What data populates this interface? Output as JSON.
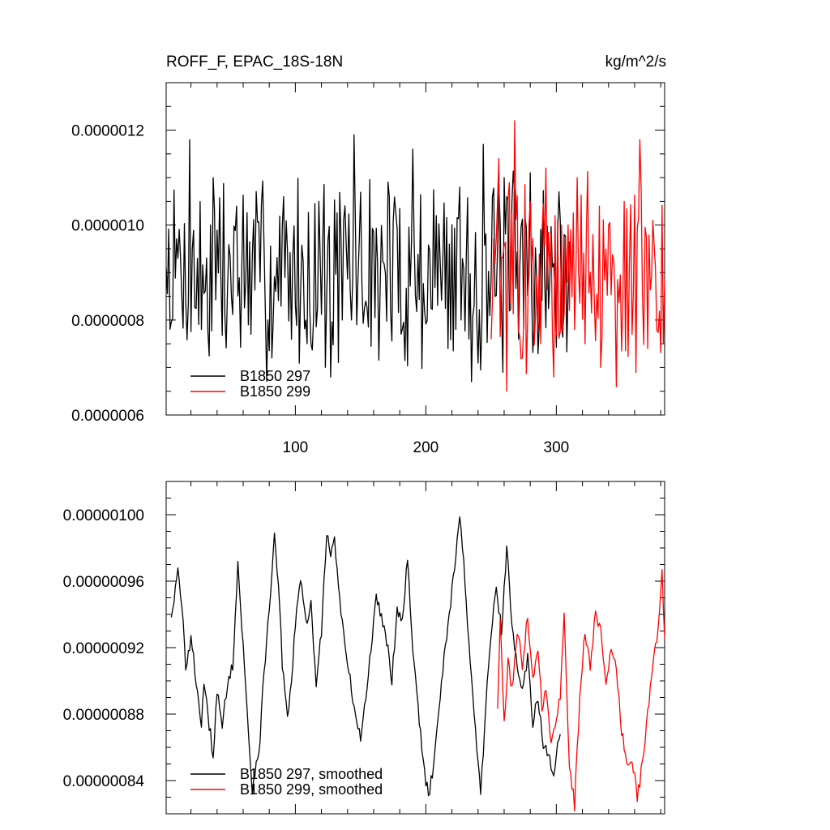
{
  "chart_data": [
    {
      "type": "line",
      "title_left": "ROFF_F, EPAC_18S-18N",
      "title_right": "kg/m^2/s",
      "xlabel": "",
      "ylabel": "",
      "xlim": [
        1,
        383
      ],
      "ylim": [
        6e-07,
        1.3e-06
      ],
      "xticks": [
        100,
        200,
        300
      ],
      "xtick_labels": [
        "100",
        "200",
        "300"
      ],
      "yticks": [
        6e-07,
        8e-07,
        1e-06,
        1.2e-06
      ],
      "ytick_labels": [
        "0.0000006",
        "0.0000008",
        "0.0000010",
        "0.0000012"
      ],
      "legend_position": "bottom-left",
      "series": [
        {
          "name": "B1850 297",
          "color": "#000000",
          "x_start": 1,
          "x_end": 310,
          "values_sample": [
            9.1e-07,
            9.3e-07,
            1.18e-06,
            7.8e-07,
            1.1e-06,
            8.1e-07,
            1.04e-06,
            7.9e-07,
            8.8e-07,
            7.2e-07,
            1.06e-06,
            8.3e-07,
            7.5e-07,
            1.05e-06,
            6.8e-07,
            8e-07,
            1.19e-06,
            8.4e-07,
            9.2e-07,
            1.06e-06,
            7.7e-07,
            1.16e-06,
            8.2e-07,
            1.02e-06,
            7.4e-07,
            1.08e-06,
            6.7e-07,
            1.17e-06,
            8.5e-07,
            1.06e-06,
            7.6e-07,
            1.11e-06
          ],
          "values_note": "approximate; roughly 310 noisy yearly values oscillating between ~6.8e-7 and ~1.19e-6"
        },
        {
          "name": "B1850 299",
          "color": "#ff0000",
          "x_start": 250,
          "x_end": 383,
          "values_sample": [
            7.6e-07,
            1.14e-06,
            6.5e-07,
            1.22e-06,
            7.2e-07,
            1.05e-06,
            7.8e-07,
            1.12e-06,
            6.8e-07,
            1e-06,
            8.2e-07,
            1.1e-06,
            7.5e-07,
            9.8e-07,
            7e-07,
            1e-06,
            6.6e-07,
            1.05e-06,
            7.7e-07,
            1.18e-06,
            7.4e-07
          ],
          "values_note": "approximate; roughly 133 noisy yearly values oscillating between ~6.5e-7 and ~1.22e-6"
        }
      ]
    },
    {
      "type": "line",
      "xlabel": "",
      "ylabel": "",
      "xlim": [
        1,
        383
      ],
      "ylim": [
        8.2e-07,
        1.02e-06
      ],
      "xticks": [
        100,
        200,
        300
      ],
      "yticks": [
        8.4e-07,
        8.8e-07,
        9.2e-07,
        9.6e-07,
        1e-06
      ],
      "ytick_labels": [
        "0.00000084",
        "0.00000088",
        "0.00000092",
        "0.00000096",
        "0.00000100"
      ],
      "legend_position": "bottom-left",
      "series": [
        {
          "name": "B1850 297, smoothed",
          "color": "#000000",
          "x_start": 5,
          "x_end": 303,
          "anchor_x": [
            5,
            8,
            10,
            13,
            16,
            20,
            24,
            28,
            30,
            33,
            37,
            40,
            44,
            48,
            52,
            56,
            60,
            64,
            67,
            70,
            73,
            76,
            80,
            84,
            87,
            90,
            94,
            97,
            100,
            104,
            108,
            112,
            116,
            120,
            124,
            127,
            130,
            134,
            138,
            142,
            146,
            150,
            154,
            158,
            162,
            166,
            170,
            174,
            178,
            182,
            186,
            190,
            194,
            198,
            202,
            206,
            210,
            214,
            218,
            222,
            226,
            230,
            234,
            238,
            242,
            246,
            250,
            254,
            258,
            262,
            266,
            270,
            274,
            278,
            282,
            286,
            290,
            294,
            298,
            301,
            303
          ],
          "anchor_y": [
            9.4e-07,
            9.55e-07,
            9.65e-07,
            9.45e-07,
            9.1e-07,
            9.25e-07,
            9e-07,
            8.75e-07,
            8.95e-07,
            8.8e-07,
            8.55e-07,
            8.95e-07,
            8.7e-07,
            9e-07,
            9.1e-07,
            9.7e-07,
            9.2e-07,
            8.7e-07,
            8.35e-07,
            8.5e-07,
            8.65e-07,
            9.05e-07,
            9.45e-07,
            9.85e-07,
            9.6e-07,
            9.1e-07,
            8.75e-07,
            9e-07,
            9.35e-07,
            9.6e-07,
            9.35e-07,
            9.45e-07,
            9e-07,
            9.3e-07,
            9.9e-07,
            9.75e-07,
            9.85e-07,
            9.5e-07,
            9.2e-07,
            9e-07,
            8.8e-07,
            8.65e-07,
            8.9e-07,
            9.2e-07,
            9.5e-07,
            9.4e-07,
            9.25e-07,
            9e-07,
            9.45e-07,
            9.35e-07,
            9.75e-07,
            9.2e-07,
            8.85e-07,
            8.5e-07,
            8.3e-07,
            8.5e-07,
            8.85e-07,
            9.15e-07,
            9.4e-07,
            9.7e-07,
            1e-06,
            9.6e-07,
            9.1e-07,
            8.7e-07,
            8.3e-07,
            8.85e-07,
            9.3e-07,
            9.55e-07,
            9.3e-07,
            9.8e-07,
            9.35e-07,
            9.1e-07,
            8.95e-07,
            9.15e-07,
            8.75e-07,
            8.9e-07,
            8.6e-07,
            8.55e-07,
            8.4e-07,
            8.6e-07,
            8.65e-07
          ],
          "values_note": "approximate reading of smoothed curve"
        },
        {
          "name": "B1850 299, smoothed",
          "color": "#ff0000",
          "x_start": 255,
          "x_end": 383,
          "anchor_x": [
            255,
            257,
            260,
            263,
            266,
            270,
            274,
            278,
            282,
            286,
            289,
            292,
            296,
            300,
            303,
            306,
            310,
            314,
            318,
            322,
            326,
            330,
            334,
            338,
            342,
            346,
            350,
            354,
            358,
            362,
            366,
            370,
            374,
            378,
            381,
            383
          ],
          "anchor_y": [
            8.85e-07,
            9.35e-07,
            8.75e-07,
            9.1e-07,
            8.95e-07,
            9.3e-07,
            9.1e-07,
            9.4e-07,
            9e-07,
            9.2e-07,
            8.85e-07,
            8.95e-07,
            8.6e-07,
            8.8e-07,
            8.9e-07,
            9.4e-07,
            8.5e-07,
            8.25e-07,
            8.9e-07,
            9.3e-07,
            9.1e-07,
            9.4e-07,
            9.3e-07,
            9e-07,
            9.2e-07,
            9.05e-07,
            8.7e-07,
            8.5e-07,
            8.55e-07,
            8.3e-07,
            8.5e-07,
            8.8e-07,
            9.1e-07,
            9.3e-07,
            9.7e-07,
            9.25e-07
          ],
          "values_note": "approximate reading of smoothed curve"
        }
      ]
    }
  ]
}
